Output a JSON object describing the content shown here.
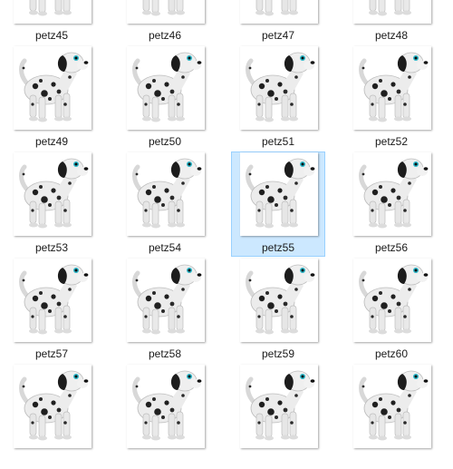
{
  "window": {
    "view": "Large icons",
    "selected_item": "petz55"
  },
  "files": [
    {
      "name": "petz45",
      "selected": false
    },
    {
      "name": "petz46",
      "selected": false
    },
    {
      "name": "petz47",
      "selected": false
    },
    {
      "name": "petz48",
      "selected": false
    },
    {
      "name": "petz49",
      "selected": false
    },
    {
      "name": "petz50",
      "selected": false
    },
    {
      "name": "petz51",
      "selected": false
    },
    {
      "name": "petz52",
      "selected": false
    },
    {
      "name": "petz53",
      "selected": false
    },
    {
      "name": "petz54",
      "selected": false
    },
    {
      "name": "petz55",
      "selected": true
    },
    {
      "name": "petz56",
      "selected": false
    },
    {
      "name": "petz57",
      "selected": false
    },
    {
      "name": "petz58",
      "selected": false
    },
    {
      "name": "petz59",
      "selected": false
    },
    {
      "name": "petz60",
      "selected": false
    },
    {
      "name": "",
      "selected": false
    },
    {
      "name": "",
      "selected": false
    },
    {
      "name": "",
      "selected": false
    },
    {
      "name": "",
      "selected": false
    }
  ],
  "thumbnail_icon": "dalmatian-puppy-image",
  "colors": {
    "selection_fill": "#cce8ff",
    "selection_border": "#99d1ff",
    "label_text": "#1a1a1a"
  }
}
